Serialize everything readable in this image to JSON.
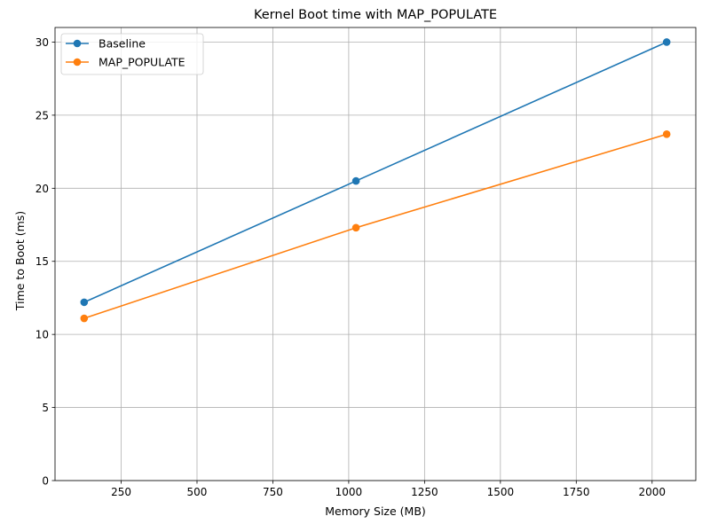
{
  "chart_data": {
    "type": "line",
    "title": "Kernel Boot time with MAP_POPULATE",
    "xlabel": "Memory Size (MB)",
    "ylabel": "Time to Boot (ms)",
    "xlim": [
      32,
      2144
    ],
    "ylim": [
      0,
      31
    ],
    "xticks": [
      250,
      500,
      750,
      1000,
      1250,
      1500,
      1750,
      2000
    ],
    "yticks": [
      0,
      5,
      10,
      15,
      20,
      25,
      30
    ],
    "grid": true,
    "legend_position": "top-left",
    "series": [
      {
        "name": "Baseline",
        "color": "#1f77b4",
        "x": [
          128,
          1024,
          2048
        ],
        "y": [
          12.2,
          20.5,
          30.0
        ]
      },
      {
        "name": "MAP_POPULATE",
        "color": "#ff7f0e",
        "x": [
          128,
          1024,
          2048
        ],
        "y": [
          11.1,
          17.3,
          23.7
        ]
      }
    ]
  }
}
